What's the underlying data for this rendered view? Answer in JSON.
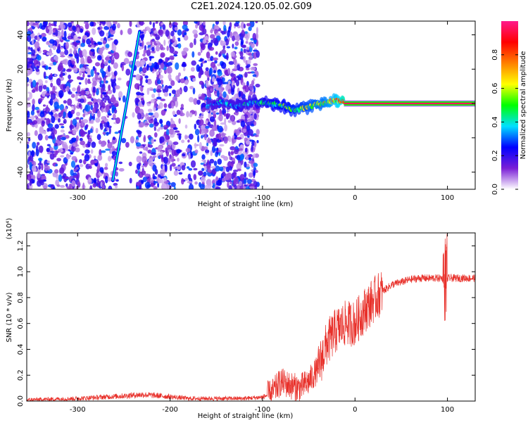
{
  "title": "C2E1.2024.120.05.02.G09",
  "chart_data": [
    {
      "type": "heatmap",
      "xlabel": "Height of straight line (km)",
      "ylabel": "Frequency (Hz)",
      "xlim": [
        -355,
        130
      ],
      "ylim": [
        -50,
        48
      ],
      "x_ticks": [
        -300,
        -200,
        -100,
        0,
        100
      ],
      "y_ticks": [
        40,
        20,
        0,
        -20,
        -40
      ],
      "x_tick_labels": [
        "-300",
        "-200",
        "-100",
        "0",
        "100"
      ],
      "y_tick_labels": [
        "40",
        "20",
        "0",
        "-20",
        "-40"
      ],
      "colorbar": {
        "label": "Normalized spectral amplitude",
        "range": [
          0,
          1
        ],
        "ticks": [
          0.0,
          0.2,
          0.4,
          0.6,
          0.8
        ],
        "tick_labels": [
          "0.0",
          "0.2",
          "0.4",
          "0.6",
          "0.8"
        ],
        "colors": [
          "#ffffff",
          "#7a1fd6",
          "#0000ff",
          "#00e0ff",
          "#00ff00",
          "#ffff00",
          "#ff8000",
          "#ff0000",
          "#ff1a8c"
        ]
      },
      "noise_region": {
        "x_range": [
          -355,
          -105
        ],
        "amplitude": 0.3
      },
      "diagonal_feature": {
        "points": [
          [
            -262,
            -45
          ],
          [
            -233,
            42
          ]
        ],
        "amplitude": 0.4
      },
      "ridge": [
        {
          "x": -160,
          "y": -2,
          "amp": 0.35
        },
        {
          "x": -145,
          "y": 1,
          "amp": 0.4
        },
        {
          "x": -130,
          "y": -2,
          "amp": 0.4
        },
        {
          "x": -110,
          "y": 1,
          "amp": 0.45
        },
        {
          "x": -95,
          "y": 0,
          "amp": 0.5
        },
        {
          "x": -80,
          "y": -1,
          "amp": 0.55
        },
        {
          "x": -65,
          "y": -4,
          "amp": 0.6
        },
        {
          "x": -50,
          "y": -2,
          "amp": 0.65
        },
        {
          "x": -35,
          "y": 0,
          "amp": 0.7
        },
        {
          "x": -20,
          "y": 2,
          "amp": 0.8
        },
        {
          "x": -10,
          "y": 0,
          "amp": 0.95
        },
        {
          "x": 130,
          "y": 0,
          "amp": 0.95
        }
      ]
    },
    {
      "type": "line",
      "xlabel": "Height of straight line (km)",
      "ylabel": "SNR (10 * v/v)",
      "y_multiplier": "(x10⁴)",
      "xlim": [
        -355,
        130
      ],
      "ylim": [
        0,
        1.3
      ],
      "x_ticks": [
        -300,
        -200,
        -100,
        0,
        100
      ],
      "y_ticks": [
        0.0,
        0.2,
        0.4,
        0.6,
        0.8,
        1.0,
        1.2
      ],
      "x_tick_labels": [
        "-300",
        "-200",
        "-100",
        "0",
        "100"
      ],
      "y_tick_labels": [
        "0.0",
        "0.2",
        "0.4",
        "0.6",
        "0.8",
        "1.0",
        "1.2"
      ],
      "series": [
        {
          "color": "#e8302a",
          "x": [
            -355,
            -300,
            -250,
            -230,
            -210,
            -180,
            -150,
            -120,
            -100,
            -90,
            -80,
            -70,
            -60,
            -50,
            -40,
            -30,
            -20,
            -10,
            0,
            10,
            20,
            30,
            40,
            50,
            60,
            70,
            80,
            90,
            100,
            110,
            120,
            130
          ],
          "y": [
            0.01,
            0.02,
            0.04,
            0.05,
            0.04,
            0.02,
            0.02,
            0.02,
            0.03,
            0.06,
            0.15,
            0.12,
            0.1,
            0.15,
            0.25,
            0.45,
            0.55,
            0.6,
            0.6,
            0.7,
            0.78,
            0.85,
            0.9,
            0.92,
            0.94,
            0.95,
            0.95,
            0.95,
            0.95,
            0.95,
            0.95,
            0.95
          ]
        }
      ]
    }
  ]
}
